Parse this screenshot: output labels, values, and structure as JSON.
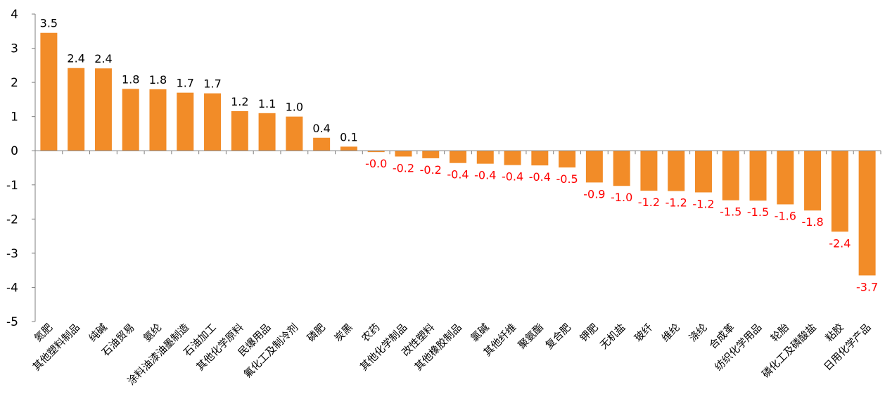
{
  "chart_data": {
    "type": "bar",
    "title": "",
    "xlabel": "",
    "ylabel": "",
    "ylim": [
      -5,
      4
    ],
    "yticks": [
      4,
      3,
      2,
      1,
      0,
      -1,
      -2,
      -3,
      -4,
      -5
    ],
    "grid": false,
    "legend": "none",
    "colors": {
      "bar": "#F28C28",
      "positive_label": "#000000",
      "negative_label": "#FF0000",
      "axis": "#7F7F7F"
    },
    "categories": [
      "氮肥",
      "其他塑料制品",
      "纯碱",
      "石油贸易",
      "氨纶",
      "涂料油漆油墨制造",
      "石油加工",
      "其他化学原料",
      "民爆用品",
      "氟化工及制冷剂",
      "磷肥",
      "炭黑",
      "农药",
      "其他化学制品",
      "改性塑料",
      "其他橡胶制品",
      "氯碱",
      "其他纤维",
      "聚氨酯",
      "复合肥",
      "钾肥",
      "无机盐",
      "玻纤",
      "维纶",
      "涤纶",
      "合成革",
      "纺织化学用品",
      "轮胎",
      "磷化工及磷酸盐",
      "粘胶",
      "日用化学产品"
    ],
    "values": [
      3.45,
      2.42,
      2.41,
      1.81,
      1.8,
      1.7,
      1.68,
      1.16,
      1.1,
      1.0,
      0.38,
      0.12,
      -0.04,
      -0.17,
      -0.22,
      -0.36,
      -0.38,
      -0.42,
      -0.43,
      -0.49,
      -0.93,
      -1.03,
      -1.17,
      -1.18,
      -1.22,
      -1.45,
      -1.46,
      -1.57,
      -1.75,
      -2.37,
      -3.65
    ],
    "data_labels": [
      "3.5",
      "2.4",
      "2.4",
      "1.8",
      "1.8",
      "1.7",
      "1.7",
      "1.2",
      "1.1",
      "1.0",
      "0.4",
      "0.1",
      "-0.0",
      "-0.2",
      "-0.2",
      "-0.4",
      "-0.4",
      "-0.4",
      "-0.4",
      "-0.5",
      "-0.9",
      "-1.0",
      "-1.2",
      "-1.2",
      "-1.2",
      "-1.5",
      "-1.5",
      "-1.6",
      "-1.8",
      "-2.4",
      "-3.7"
    ]
  }
}
